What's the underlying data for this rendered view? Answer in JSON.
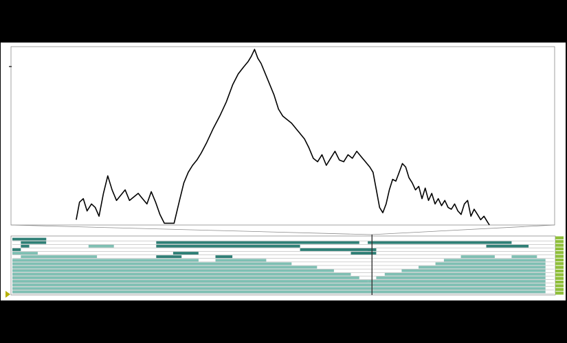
{
  "colors": {
    "letterbox": "#000000",
    "panel_background": "#ffffff",
    "frame": "#8a8a8a",
    "line": "#000000",
    "heatmap_strong": "#2f7f76",
    "heatmap_light": "#7fbfb3",
    "heatmap_empty": "#ffffff",
    "level_bar": "#8fbf3a",
    "play_marker": "#b5b000"
  },
  "icons": {
    "play_marker": "triangle-right-icon"
  },
  "chart_data": [
    {
      "type": "line",
      "title": "",
      "xlabel": "",
      "ylabel": "",
      "grid": false,
      "legend": "none",
      "xlim": [
        0,
        1000
      ],
      "ylim": [
        0,
        100
      ],
      "series": [
        {
          "values": [
            [
              120,
              3
            ],
            [
              126,
              13
            ],
            [
              133,
              15
            ],
            [
              140,
              8
            ],
            [
              148,
              12
            ],
            [
              155,
              10
            ],
            [
              162,
              5
            ],
            [
              170,
              18
            ],
            [
              178,
              28
            ],
            [
              186,
              20
            ],
            [
              194,
              14
            ],
            [
              202,
              17
            ],
            [
              210,
              20
            ],
            [
              218,
              14
            ],
            [
              226,
              16
            ],
            [
              234,
              18
            ],
            [
              242,
              15
            ],
            [
              250,
              12
            ],
            [
              258,
              19
            ],
            [
              266,
              13
            ],
            [
              274,
              6
            ],
            [
              282,
              1
            ],
            [
              300,
              1
            ],
            [
              310,
              14
            ],
            [
              318,
              24
            ],
            [
              326,
              30
            ],
            [
              334,
              34
            ],
            [
              342,
              37
            ],
            [
              350,
              41
            ],
            [
              360,
              47
            ],
            [
              372,
              55
            ],
            [
              384,
              62
            ],
            [
              396,
              70
            ],
            [
              408,
              80
            ],
            [
              418,
              86
            ],
            [
              428,
              90
            ],
            [
              436,
              93
            ],
            [
              442,
              96
            ],
            [
              448,
              100
            ],
            [
              454,
              95
            ],
            [
              460,
              92
            ],
            [
              468,
              86
            ],
            [
              476,
              80
            ],
            [
              484,
              74
            ],
            [
              492,
              66
            ],
            [
              500,
              62
            ],
            [
              508,
              60
            ],
            [
              516,
              58
            ],
            [
              524,
              55
            ],
            [
              532,
              52
            ],
            [
              540,
              49
            ],
            [
              548,
              44
            ],
            [
              556,
              38
            ],
            [
              564,
              36
            ],
            [
              572,
              40
            ],
            [
              580,
              34
            ],
            [
              588,
              38
            ],
            [
              596,
              42
            ],
            [
              604,
              37
            ],
            [
              612,
              36
            ],
            [
              620,
              40
            ],
            [
              628,
              38
            ],
            [
              636,
              42
            ],
            [
              644,
              39
            ],
            [
              652,
              36
            ],
            [
              660,
              33
            ],
            [
              666,
              30
            ],
            [
              672,
              20
            ],
            [
              678,
              10
            ],
            [
              684,
              7
            ],
            [
              690,
              12
            ],
            [
              696,
              20
            ],
            [
              702,
              26
            ],
            [
              708,
              25
            ],
            [
              714,
              30
            ],
            [
              720,
              35
            ],
            [
              726,
              33
            ],
            [
              732,
              27
            ],
            [
              738,
              24
            ],
            [
              744,
              20
            ],
            [
              750,
              22
            ],
            [
              756,
              15
            ],
            [
              762,
              21
            ],
            [
              768,
              14
            ],
            [
              774,
              18
            ],
            [
              780,
              12
            ],
            [
              786,
              15
            ],
            [
              792,
              11
            ],
            [
              798,
              14
            ],
            [
              804,
              10
            ],
            [
              810,
              9
            ],
            [
              816,
              12
            ],
            [
              822,
              8
            ],
            [
              828,
              6
            ],
            [
              834,
              12
            ],
            [
              840,
              14
            ],
            [
              846,
              5
            ],
            [
              852,
              9
            ],
            [
              858,
              6
            ],
            [
              864,
              3
            ],
            [
              870,
              5
            ],
            [
              876,
              2
            ],
            [
              880,
              0
            ]
          ]
        }
      ]
    },
    {
      "type": "heatmap",
      "title": "",
      "xlabel": "",
      "ylabel": "",
      "legend": "none",
      "rows": 16,
      "columns": 64,
      "cursor_column": 42.5,
      "level": 1.0,
      "cells": [
        [
          [
            0,
            4,
            2
          ]
        ],
        [
          [
            1,
            4,
            2
          ],
          [
            17,
            41,
            2
          ],
          [
            42,
            59,
            2
          ]
        ],
        [
          [
            1,
            2,
            2
          ],
          [
            9,
            12,
            1
          ],
          [
            17,
            34,
            2
          ],
          [
            56,
            61,
            2
          ]
        ],
        [
          [
            0,
            1,
            2
          ],
          [
            34,
            43,
            2
          ],
          [
            42,
            43,
            2
          ]
        ],
        [
          [
            0,
            3,
            1
          ],
          [
            19,
            22,
            2
          ],
          [
            40,
            43,
            2
          ]
        ],
        [
          [
            1,
            10,
            1
          ],
          [
            17,
            20,
            2
          ],
          [
            24,
            26,
            2
          ],
          [
            53,
            57,
            1
          ],
          [
            59,
            62,
            1
          ]
        ],
        [
          [
            0,
            22,
            1
          ],
          [
            24,
            30,
            1
          ],
          [
            51,
            63,
            1
          ]
        ],
        [
          [
            0,
            33,
            1
          ],
          [
            50,
            63,
            1
          ]
        ],
        [
          [
            0,
            36,
            1
          ],
          [
            48,
            63,
            1
          ]
        ],
        [
          [
            0,
            38,
            1
          ],
          [
            46,
            63,
            1
          ]
        ],
        [
          [
            0,
            40,
            1
          ],
          [
            44,
            63,
            1
          ]
        ],
        [
          [
            0,
            41,
            1
          ],
          [
            43,
            63,
            1
          ]
        ],
        [
          [
            0,
            42,
            1
          ],
          [
            42,
            63,
            1
          ]
        ],
        [
          [
            0,
            63,
            1
          ]
        ],
        [
          [
            0,
            63,
            1
          ]
        ],
        [
          [
            0,
            63,
            1
          ]
        ]
      ]
    }
  ]
}
